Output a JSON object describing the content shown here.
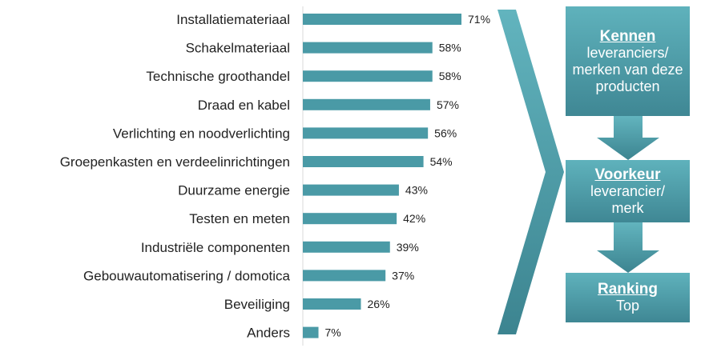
{
  "chart_data": {
    "type": "bar",
    "orientation": "horizontal",
    "categories": [
      "Installatiemateriaal",
      "Schakelmateriaal",
      "Technische groothandel",
      "Draad en kabel",
      "Verlichting en noodverlichting",
      "Groepenkasten en verdeelinrichtingen",
      "Duurzame energie",
      "Testen en meten",
      "Industriële componenten",
      "Gebouwautomatisering / domotica",
      "Beveiliging",
      "Anders"
    ],
    "values": [
      71,
      58,
      58,
      57,
      56,
      54,
      43,
      42,
      39,
      37,
      26,
      7
    ],
    "value_format": "percent",
    "bar_color": "#4a9aa6",
    "grid": false
  },
  "funnel": {
    "color": "#4a9aa6",
    "steps": [
      {
        "title": "Kennen",
        "text": "leveranciers/ merken van deze producten"
      },
      {
        "title": "Voorkeur",
        "text": "leverancier/ merk"
      },
      {
        "title": "Ranking",
        "text": "Top"
      }
    ]
  }
}
